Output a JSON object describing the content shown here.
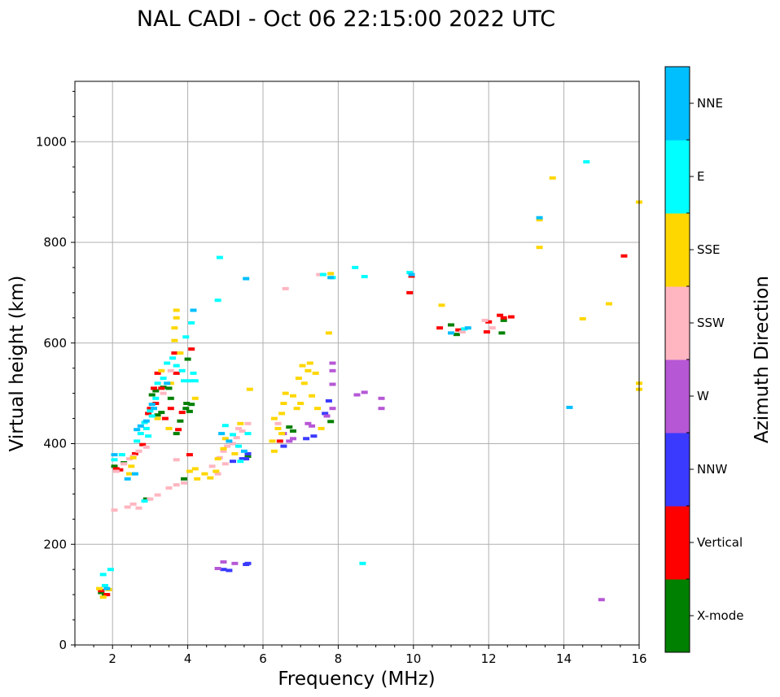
{
  "chart_data": {
    "type": "scatter",
    "title": "NAL CADI - Oct 06 22:15:00 2022 UTC",
    "xlabel": "Frequency (MHz)",
    "ylabel": "Virtual height (km)",
    "xlim": [
      1.0,
      16.0
    ],
    "ylim": [
      0,
      1120
    ],
    "xticks": [
      2,
      4,
      6,
      8,
      10,
      12,
      14,
      16
    ],
    "yticks": [
      0,
      200,
      400,
      600,
      800,
      1000
    ],
    "xtick_labels": [
      "2",
      "4",
      "6",
      "8",
      "10",
      "12",
      "14",
      "16"
    ],
    "ytick_labels": [
      "0",
      "200",
      "400",
      "600",
      "800",
      "1000"
    ],
    "grid": true,
    "colorbar": {
      "label": "Azimuth Direction",
      "categories": [
        "X-mode",
        "Vertical",
        "NNW",
        "W",
        "SSW",
        "SSE",
        "E",
        "NNE"
      ],
      "colors": [
        "#008000",
        "#ff0000",
        "#3a3aff",
        "#b657d6",
        "#ffb6c1",
        "#ffd700",
        "#00ffff",
        "#00bfff"
      ]
    },
    "series": [
      {
        "name": "X-mode",
        "points": [
          [
            1.7,
            104
          ],
          [
            1.8,
            100
          ],
          [
            2.05,
            355
          ],
          [
            2.3,
            362
          ],
          [
            2.9,
            290
          ],
          [
            3.05,
            497
          ],
          [
            3.15,
            505
          ],
          [
            3.2,
            457
          ],
          [
            3.3,
            462
          ],
          [
            3.35,
            512
          ],
          [
            3.5,
            510
          ],
          [
            3.55,
            490
          ],
          [
            3.7,
            420
          ],
          [
            3.8,
            445
          ],
          [
            3.95,
            470
          ],
          [
            3.97,
            480
          ],
          [
            4.05,
            464
          ],
          [
            4.1,
            478
          ],
          [
            3.9,
            330
          ],
          [
            5.6,
            375
          ],
          [
            6.7,
            433
          ],
          [
            6.8,
            425
          ],
          [
            7.8,
            444
          ],
          [
            11.0,
            636
          ],
          [
            11.15,
            617
          ],
          [
            12.35,
            620
          ],
          [
            12.4,
            645
          ],
          [
            4.0,
            568
          ]
        ]
      },
      {
        "name": "Vertical",
        "points": [
          [
            1.7,
            108
          ],
          [
            1.85,
            100
          ],
          [
            2.1,
            350
          ],
          [
            2.2,
            348
          ],
          [
            2.6,
            380
          ],
          [
            2.8,
            398
          ],
          [
            3.0,
            470
          ],
          [
            3.1,
            510
          ],
          [
            3.15,
            480
          ],
          [
            3.2,
            540
          ],
          [
            3.3,
            510
          ],
          [
            3.55,
            470
          ],
          [
            3.65,
            580
          ],
          [
            3.7,
            540
          ],
          [
            3.85,
            462
          ],
          [
            4.05,
            378
          ],
          [
            4.1,
            588
          ],
          [
            3.75,
            428
          ],
          [
            6.45,
            405
          ],
          [
            9.95,
            733
          ],
          [
            9.9,
            700
          ],
          [
            10.7,
            630
          ],
          [
            11.2,
            626
          ],
          [
            11.95,
            622
          ],
          [
            12.0,
            642
          ],
          [
            12.4,
            650
          ],
          [
            12.3,
            655
          ],
          [
            12.6,
            652
          ],
          [
            15.6,
            773
          ],
          [
            3.4,
            450
          ],
          [
            2.95,
            460
          ]
        ]
      },
      {
        "name": "NNW",
        "points": [
          [
            4.95,
            150
          ],
          [
            5.1,
            148
          ],
          [
            5.55,
            160
          ],
          [
            5.6,
            162
          ],
          [
            5.2,
            365
          ],
          [
            5.45,
            370
          ],
          [
            5.55,
            370
          ],
          [
            5.6,
            380
          ],
          [
            6.55,
            395
          ],
          [
            7.15,
            410
          ],
          [
            7.35,
            415
          ],
          [
            7.75,
            485
          ],
          [
            7.65,
            460
          ]
        ]
      },
      {
        "name": "W",
        "points": [
          [
            4.8,
            152
          ],
          [
            4.95,
            165
          ],
          [
            5.25,
            162
          ],
          [
            6.55,
            420
          ],
          [
            6.7,
            405
          ],
          [
            6.8,
            410
          ],
          [
            7.3,
            435
          ],
          [
            7.7,
            455
          ],
          [
            7.85,
            470
          ],
          [
            7.85,
            518
          ],
          [
            7.85,
            545
          ],
          [
            7.85,
            560
          ],
          [
            8.5,
            497
          ],
          [
            8.7,
            502
          ],
          [
            9.15,
            490
          ],
          [
            9.15,
            470
          ],
          [
            15.0,
            90
          ],
          [
            7.2,
            440
          ]
        ]
      },
      {
        "name": "SSW",
        "points": [
          [
            2.05,
            268
          ],
          [
            2.4,
            274
          ],
          [
            2.55,
            280
          ],
          [
            2.7,
            272
          ],
          [
            3.0,
            290
          ],
          [
            3.2,
            298
          ],
          [
            3.5,
            312
          ],
          [
            3.7,
            318
          ],
          [
            3.9,
            322
          ],
          [
            2.1,
            345
          ],
          [
            2.3,
            360
          ],
          [
            2.45,
            370
          ],
          [
            2.55,
            375
          ],
          [
            2.7,
            385
          ],
          [
            2.9,
            393
          ],
          [
            4.65,
            355
          ],
          [
            4.85,
            372
          ],
          [
            4.95,
            385
          ],
          [
            5.05,
            395
          ],
          [
            5.2,
            400
          ],
          [
            5.3,
            412
          ],
          [
            5.45,
            425
          ],
          [
            5.6,
            440
          ],
          [
            5.35,
            430
          ],
          [
            5.0,
            360
          ],
          [
            4.8,
            340
          ],
          [
            3.7,
            368
          ],
          [
            6.4,
            440
          ],
          [
            6.6,
            708
          ],
          [
            7.5,
            736
          ],
          [
            11.3,
            622
          ],
          [
            12.1,
            630
          ],
          [
            11.9,
            645
          ],
          [
            3.55,
            545
          ],
          [
            3.35,
            500
          ]
        ]
      },
      {
        "name": "SSE",
        "points": [
          [
            1.65,
            112
          ],
          [
            1.75,
            95
          ],
          [
            1.9,
            110
          ],
          [
            2.45,
            340
          ],
          [
            2.5,
            355
          ],
          [
            2.55,
            372
          ],
          [
            3.3,
            545
          ],
          [
            3.55,
            520
          ],
          [
            3.65,
            605
          ],
          [
            3.65,
            630
          ],
          [
            3.7,
            650
          ],
          [
            3.7,
            665
          ],
          [
            3.8,
            580
          ],
          [
            4.05,
            345
          ],
          [
            4.2,
            350
          ],
          [
            4.25,
            330
          ],
          [
            4.45,
            340
          ],
          [
            4.6,
            332
          ],
          [
            4.75,
            345
          ],
          [
            4.8,
            370
          ],
          [
            4.95,
            390
          ],
          [
            5.25,
            380
          ],
          [
            5.4,
            440
          ],
          [
            5.65,
            508
          ],
          [
            6.3,
            385
          ],
          [
            6.4,
            430
          ],
          [
            6.5,
            460
          ],
          [
            6.55,
            480
          ],
          [
            6.6,
            500
          ],
          [
            6.8,
            495
          ],
          [
            6.9,
            470
          ],
          [
            7.0,
            480
          ],
          [
            6.95,
            530
          ],
          [
            7.05,
            555
          ],
          [
            7.1,
            520
          ],
          [
            7.2,
            545
          ],
          [
            7.25,
            560
          ],
          [
            7.3,
            495
          ],
          [
            7.4,
            540
          ],
          [
            7.55,
            430
          ],
          [
            7.75,
            620
          ],
          [
            7.8,
            738
          ],
          [
            6.25,
            405
          ],
          [
            6.3,
            450
          ],
          [
            6.5,
            420
          ],
          [
            7.45,
            470
          ],
          [
            10.75,
            675
          ],
          [
            13.35,
            845
          ],
          [
            13.35,
            790
          ],
          [
            13.7,
            928
          ],
          [
            14.5,
            648
          ],
          [
            15.2,
            678
          ],
          [
            16.0,
            880
          ],
          [
            16.0,
            520
          ],
          [
            16.0,
            508
          ],
          [
            5.0,
            410
          ],
          [
            3.5,
            430
          ],
          [
            3.2,
            450
          ],
          [
            4.2,
            490
          ]
        ]
      },
      {
        "name": "E",
        "points": [
          [
            1.75,
            140
          ],
          [
            1.8,
            118
          ],
          [
            1.95,
            150
          ],
          [
            2.05,
            368
          ],
          [
            2.25,
            378
          ],
          [
            2.65,
            405
          ],
          [
            2.75,
            420
          ],
          [
            2.85,
            442
          ],
          [
            2.9,
            430
          ],
          [
            3.0,
            465
          ],
          [
            3.05,
            455
          ],
          [
            3.15,
            490
          ],
          [
            3.2,
            520
          ],
          [
            3.35,
            530
          ],
          [
            3.45,
            560
          ],
          [
            3.6,
            570
          ],
          [
            3.7,
            555
          ],
          [
            3.85,
            545
          ],
          [
            3.95,
            612
          ],
          [
            4.1,
            640
          ],
          [
            4.15,
            540
          ],
          [
            4.2,
            525
          ],
          [
            3.9,
            525
          ],
          [
            4.85,
            770
          ],
          [
            4.8,
            685
          ],
          [
            5.0,
            436
          ],
          [
            5.2,
            418
          ],
          [
            5.35,
            395
          ],
          [
            5.4,
            365
          ],
          [
            5.6,
            420
          ],
          [
            7.6,
            736
          ],
          [
            7.85,
            730
          ],
          [
            8.45,
            750
          ],
          [
            8.7,
            732
          ],
          [
            8.65,
            162
          ],
          [
            9.9,
            740
          ],
          [
            11.35,
            628
          ],
          [
            14.6,
            960
          ],
          [
            4.05,
            525
          ],
          [
            2.85,
            286
          ],
          [
            2.95,
            415
          ]
        ]
      },
      {
        "name": "NNE",
        "points": [
          [
            1.85,
            112
          ],
          [
            2.05,
            378
          ],
          [
            2.4,
            330
          ],
          [
            2.65,
            428
          ],
          [
            2.75,
            435
          ],
          [
            2.9,
            445
          ],
          [
            3.05,
            478
          ],
          [
            3.1,
            470
          ],
          [
            4.15,
            665
          ],
          [
            4.9,
            420
          ],
          [
            5.1,
            405
          ],
          [
            5.5,
            385
          ],
          [
            5.55,
            728
          ],
          [
            7.8,
            730
          ],
          [
            9.95,
            736
          ],
          [
            11.0,
            620
          ],
          [
            11.45,
            630
          ],
          [
            13.35,
            849
          ],
          [
            14.15,
            472
          ],
          [
            2.6,
            340
          ],
          [
            3.45,
            520
          ]
        ]
      }
    ]
  }
}
